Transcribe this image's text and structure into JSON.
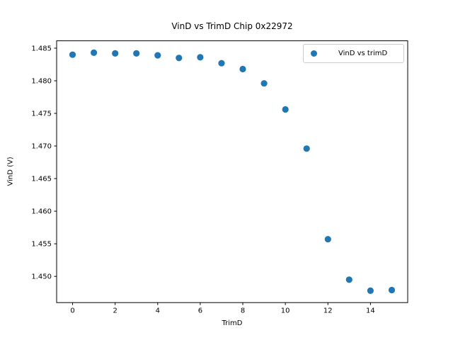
{
  "figure": {
    "background": "#ffffff",
    "text_color": "#000000",
    "spine_color": "#000000"
  },
  "chart_data": {
    "type": "scatter",
    "title": "VinD vs TrimD Chip 0x22972",
    "xlabel": "TrimD",
    "ylabel": "VinD (V)",
    "xlim": [
      -0.75,
      15.75
    ],
    "ylim": [
      1.44598,
      1.48613
    ],
    "grid": false,
    "xticks": [
      0,
      2,
      4,
      6,
      8,
      10,
      12,
      14
    ],
    "xtick_labels": [
      "0",
      "2",
      "4",
      "6",
      "8",
      "10",
      "12",
      "14"
    ],
    "yticks": [
      1.45,
      1.455,
      1.46,
      1.465,
      1.47,
      1.475,
      1.48,
      1.485
    ],
    "ytick_labels": [
      "1.450",
      "1.455",
      "1.460",
      "1.465",
      "1.470",
      "1.475",
      "1.480",
      "1.485"
    ],
    "legend": {
      "position": "upper right",
      "entries": [
        "VinD vs trimD"
      ]
    },
    "series": [
      {
        "name": "VinD vs trimD",
        "color": "#1f77b4",
        "marker": "circle",
        "x": [
          0,
          1,
          2,
          3,
          4,
          5,
          6,
          7,
          8,
          9,
          10,
          11,
          12,
          13,
          14,
          15
        ],
        "y": [
          1.484,
          1.4843,
          1.4842,
          1.4842,
          1.4839,
          1.4835,
          1.4836,
          1.4827,
          1.4818,
          1.4796,
          1.4756,
          1.4696,
          1.4557,
          1.4495,
          1.4478,
          1.4479
        ]
      }
    ]
  }
}
